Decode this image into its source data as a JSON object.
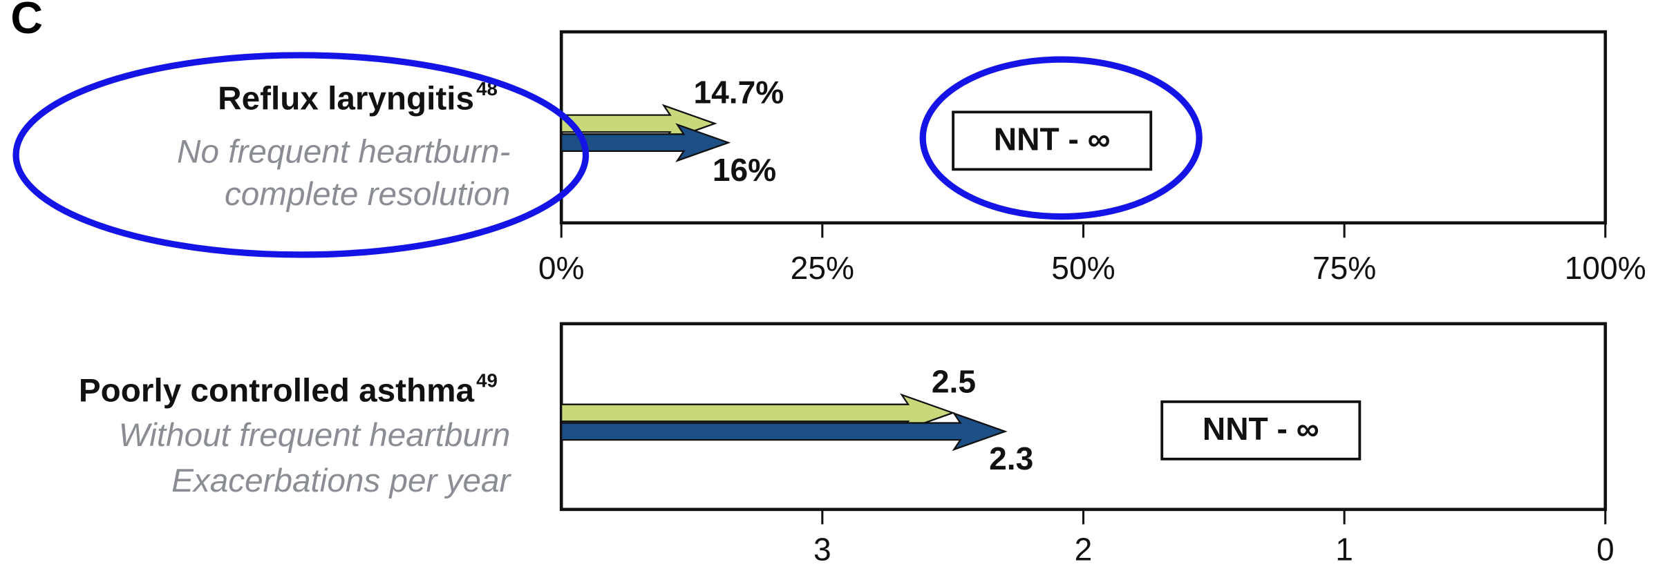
{
  "panel_label": "C",
  "chart_data": [
    {
      "type": "bar",
      "orientation": "horizontal",
      "label": "Reflux laryngitis",
      "label_sup": "48",
      "sublabels": [
        "No frequent heartburn-",
        "complete resolution"
      ],
      "annotation": "NNT - ∞",
      "xlim": [
        0,
        100
      ],
      "xticks": [
        {
          "value": 0,
          "label": "0%"
        },
        {
          "value": 25,
          "label": "25%"
        },
        {
          "value": 50,
          "label": "50%"
        },
        {
          "value": 75,
          "label": "75%"
        },
        {
          "value": 100,
          "label": "100%"
        }
      ],
      "series": [
        {
          "color": "#c8d97c",
          "values": [
            14.7
          ],
          "value_labels": [
            "14.7%"
          ]
        },
        {
          "color": "#1c4f86",
          "values": [
            16
          ],
          "value_labels": [
            "16%"
          ]
        }
      ]
    },
    {
      "type": "bar",
      "orientation": "horizontal",
      "label": "Poorly controlled asthma",
      "label_sup": "49",
      "sublabels": [
        "Without frequent heartburn",
        "Exacerbations per year"
      ],
      "annotation": "NNT - ∞",
      "xlim": [
        4,
        0
      ],
      "xticks": [
        3,
        2,
        1,
        0
      ],
      "series": [
        {
          "color": "#c8d97c",
          "values": [
            2.5
          ]
        },
        {
          "color": "#1c4f86",
          "values": [
            2.3
          ]
        }
      ]
    }
  ]
}
